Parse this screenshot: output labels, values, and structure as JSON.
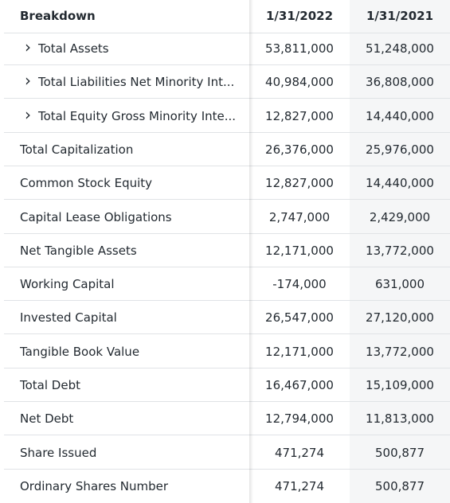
{
  "header": {
    "breakdown": "Breakdown",
    "col1": "1/31/2022",
    "col2": "1/31/2021"
  },
  "rows": [
    {
      "label": "Total Assets",
      "expandable": true,
      "v1": "53,811,000",
      "v2": "51,248,000"
    },
    {
      "label": "Total Liabilities Net Minority Int...",
      "expandable": true,
      "v1": "40,984,000",
      "v2": "36,808,000"
    },
    {
      "label": "Total Equity Gross Minority Inte...",
      "expandable": true,
      "v1": "12,827,000",
      "v2": "14,440,000"
    },
    {
      "label": "Total Capitalization",
      "expandable": false,
      "v1": "26,376,000",
      "v2": "25,976,000"
    },
    {
      "label": "Common Stock Equity",
      "expandable": false,
      "v1": "12,827,000",
      "v2": "14,440,000"
    },
    {
      "label": "Capital Lease Obligations",
      "expandable": false,
      "v1": "2,747,000",
      "v2": "2,429,000"
    },
    {
      "label": "Net Tangible Assets",
      "expandable": false,
      "v1": "12,171,000",
      "v2": "13,772,000"
    },
    {
      "label": "Working Capital",
      "expandable": false,
      "v1": "-174,000",
      "v2": "631,000"
    },
    {
      "label": "Invested Capital",
      "expandable": false,
      "v1": "26,547,000",
      "v2": "27,120,000"
    },
    {
      "label": "Tangible Book Value",
      "expandable": false,
      "v1": "12,171,000",
      "v2": "13,772,000"
    },
    {
      "label": "Total Debt",
      "expandable": false,
      "v1": "16,467,000",
      "v2": "15,109,000"
    },
    {
      "label": "Net Debt",
      "expandable": false,
      "v1": "12,794,000",
      "v2": "11,813,000"
    },
    {
      "label": "Share Issued",
      "expandable": false,
      "v1": "471,274",
      "v2": "500,877"
    },
    {
      "label": "Ordinary Shares Number",
      "expandable": false,
      "v1": "471,274",
      "v2": "500,877"
    }
  ],
  "icons": {
    "expand": "chevron-right-icon"
  },
  "colors": {
    "text": "#232a31",
    "separator": "#e0e3e6",
    "alt_column": "#f5f6f7"
  }
}
